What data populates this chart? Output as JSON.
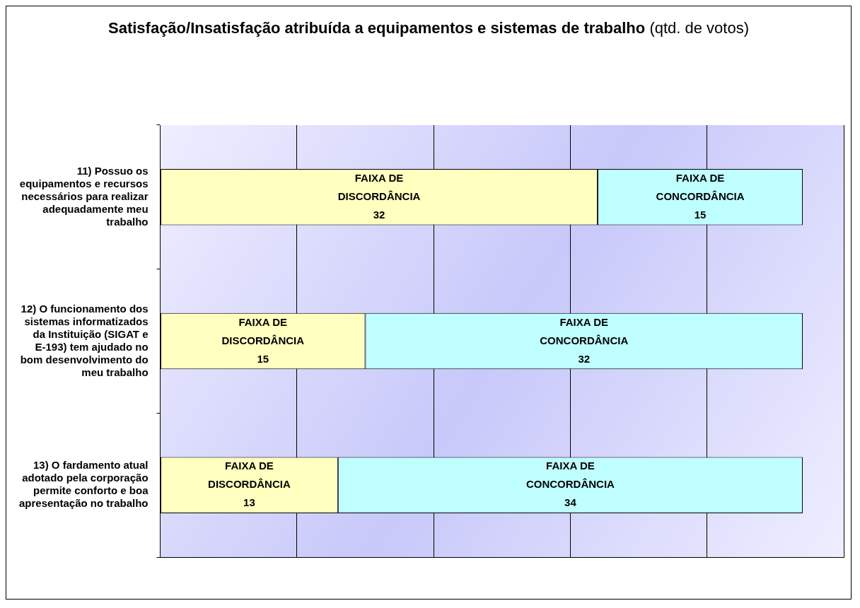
{
  "chart_data": {
    "type": "bar",
    "orientation": "horizontal",
    "stacked": true,
    "title": "Satisfação/Insatisfação atribuída a equipamentos e sistemas de trabalho",
    "subtitle": "(qtd. de votos)",
    "categories": [
      "11) Possuo os equipamentos e recursos necessários para realizar adequadamente meu trabalho",
      "12) O funcionamento dos sistemas informatizados da Instituição (SIGAT e E-193) tem ajudado no bom desenvolvimento do meu trabalho",
      "13) O fardamento atual adotado pela corporação permite conforto e boa apresentação no trabalho"
    ],
    "series": [
      {
        "name": "FAIXA DE DISCORDÂNCIA",
        "color": "#ffffc0",
        "values": [
          32,
          15,
          13
        ]
      },
      {
        "name": "FAIXA DE CONCORDÂNCIA",
        "color": "#c0ffff",
        "values": [
          15,
          32,
          34
        ]
      }
    ],
    "xlim": [
      0,
      50
    ],
    "xticks": [
      0,
      10,
      20,
      30,
      40,
      50
    ],
    "tick_labels": "y",
    "grid": "x",
    "data_labels": true,
    "legend": false
  }
}
